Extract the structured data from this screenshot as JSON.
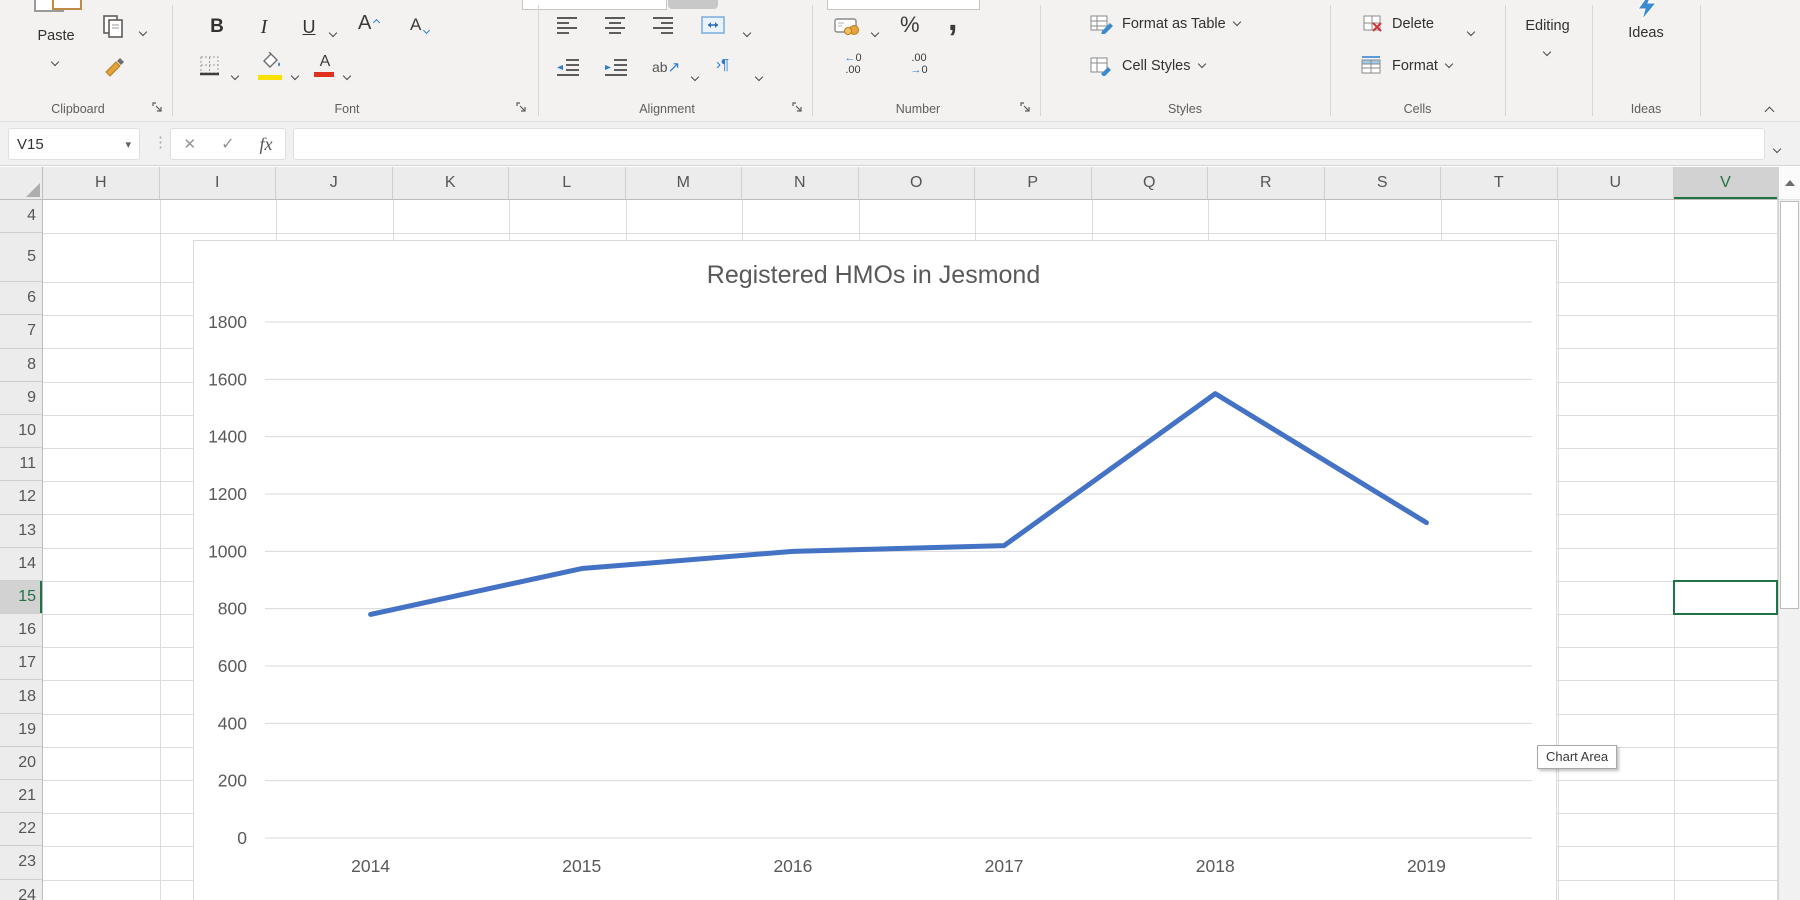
{
  "ribbon": {
    "clipboard": {
      "label": "Clipboard",
      "paste": "Paste"
    },
    "font": {
      "label": "Font",
      "bold": "B",
      "italic": "I",
      "underline": "U"
    },
    "alignment": {
      "label": "Alignment"
    },
    "number": {
      "label": "Number",
      "percent": "%",
      "comma": ","
    },
    "styles": {
      "label": "Styles",
      "format_as_table": "Format as Table",
      "cell_styles": "Cell Styles"
    },
    "cells": {
      "label": "Cells",
      "delete": "Delete",
      "format": "Format"
    },
    "editing": {
      "label": "Editing"
    },
    "ideas": {
      "label": "Ideas",
      "button": "Ideas"
    }
  },
  "formula_bar": {
    "name_box": "V15",
    "cancel_icon": "✕",
    "enter_icon": "✓",
    "fx_icon": "fx",
    "formula_value": ""
  },
  "sheet": {
    "columns": [
      "H",
      "I",
      "J",
      "K",
      "L",
      "M",
      "N",
      "O",
      "P",
      "Q",
      "R",
      "S",
      "T",
      "U",
      "V"
    ],
    "rows": [
      "4",
      "5",
      "6",
      "7",
      "8",
      "9",
      "10",
      "11",
      "12",
      "13",
      "14",
      "15",
      "16",
      "17",
      "18",
      "19",
      "20",
      "21",
      "22",
      "23",
      "24"
    ],
    "active_cell": "V15",
    "active_column": "V",
    "active_row": "15"
  },
  "chart_data": {
    "type": "line",
    "title": "Registered HMOs in Jesmond",
    "categories": [
      "2014",
      "2015",
      "2016",
      "2017",
      "2018",
      "2019"
    ],
    "values": [
      780,
      940,
      1000,
      1020,
      1550,
      1100
    ],
    "xlabel": "",
    "ylabel": "",
    "ylim": [
      0,
      1800
    ],
    "ytick": 200,
    "grid": true,
    "legend": "none",
    "line_color": "#4472C4",
    "gridline_color": "#D9D9D9",
    "text_color": "#595959"
  },
  "tooltip": {
    "text": "Chart Area"
  },
  "colors": {
    "excel_green": "#217346",
    "accent_blue": "#2B7CD3",
    "fill_yellow": "#F7E100",
    "font_red": "#E0301E"
  }
}
